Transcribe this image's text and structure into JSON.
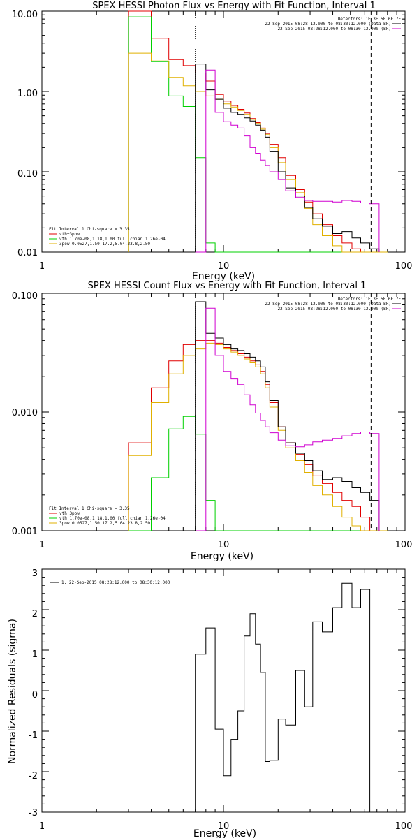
{
  "chart_data": [
    {
      "type": "line",
      "title": "SPEX HESSI Photon Flux vs Energy with Fit Function, Interval 1",
      "xlabel": "Energy (keV)",
      "ylabel": "",
      "xscale": "log",
      "yscale": "log",
      "xlim": [
        1,
        100
      ],
      "ylim": [
        0.01,
        10
      ],
      "x_ticks": [
        "1",
        "10",
        "100"
      ],
      "y_ticks": [
        "10.00",
        "1.00",
        "0.10",
        "0.01"
      ],
      "edges": [
        3,
        4,
        5,
        6,
        7,
        8,
        9,
        10,
        11,
        12,
        13,
        14,
        15,
        16,
        17,
        18,
        20,
        22,
        25,
        28,
        31,
        35,
        40,
        45,
        51,
        57,
        64,
        72,
        80
      ],
      "vlines": [
        {
          "x": 7,
          "style": "dotted"
        },
        {
          "x": 65,
          "style": "dashed"
        }
      ],
      "series": [
        {
          "name": "vth+3pow",
          "color": "#e00000",
          "values": [
            10,
            4.6,
            2.5,
            2.1,
            1.7,
            1.35,
            0.92,
            0.76,
            0.67,
            0.6,
            0.54,
            0.46,
            0.41,
            0.35,
            0.3,
            0.22,
            0.15,
            0.09,
            0.06,
            0.042,
            0.03,
            0.022,
            0.016,
            0.013,
            0.011,
            0.01,
            0.01,
            0.01
          ]
        },
        {
          "name": "vth 1.70e-08,1.18,1.00  full chian 1.26e-04",
          "color": "#00d000",
          "values": [
            8.5,
            2.35,
            0.88,
            0.65,
            0.15,
            0.013,
            0.01,
            0.01,
            0.01,
            0.01,
            0.01,
            0.01,
            0.01,
            0.01,
            0.01,
            0.01,
            0.01,
            0.01,
            0.01,
            0.01,
            0.01,
            0.01,
            0.01,
            0.01,
            0.01,
            0.01,
            0.01,
            0.01
          ]
        },
        {
          "name": "3pow 0.0527,1.50,17.2,5.04,23.8,2.50",
          "color": "#e0b000",
          "values": [
            3.0,
            2.4,
            1.5,
            1.18,
            1.0,
            0.88,
            0.8,
            0.7,
            0.64,
            0.58,
            0.52,
            0.45,
            0.4,
            0.34,
            0.29,
            0.2,
            0.13,
            0.08,
            0.055,
            0.035,
            0.022,
            0.016,
            0.012,
            0.01,
            0.01,
            0.01,
            0.01,
            0.01
          ]
        },
        {
          "name": "22-Sep-2015 08:28:12.000 to 08:30:12.000 (Data-Bk)",
          "color": "#000000",
          "values": [
            null,
            null,
            null,
            null,
            2.2,
            1.05,
            0.8,
            0.62,
            0.55,
            0.52,
            0.47,
            0.43,
            0.38,
            0.33,
            0.27,
            0.18,
            0.1,
            0.063,
            0.05,
            0.036,
            0.026,
            0.021,
            0.017,
            0.018,
            0.015,
            0.013,
            0.011,
            null
          ]
        },
        {
          "name": "22-Sep-2015 08:28:12.000 to 08:30:12.000 (Bk)",
          "color": "#d000d0",
          "values": [
            null,
            null,
            null,
            null,
            0.01,
            1.85,
            0.55,
            0.42,
            0.38,
            0.35,
            0.28,
            0.2,
            0.17,
            0.14,
            0.12,
            0.1,
            0.08,
            0.058,
            0.048,
            0.044,
            0.043,
            0.043,
            0.042,
            0.044,
            0.043,
            0.041,
            0.04,
            null
          ]
        }
      ],
      "legend_top": [
        "Detectors: 1F 3F 5F 6F 7F",
        "22-Sep-2015 08:28:12.000 to 08:30:12.000 (Data-Bk)",
        "22-Sep-2015 08:28:12.000 to 08:30:12.000 (Bk)"
      ],
      "legend_bottom": [
        "Fit Interval 1    Chi-square = 3.35",
        "vth+3pow",
        "vth 1.70e-08,1.18,1.00  full chian 1.26e-04",
        "3pow 0.0527,1.50,17.2,5.04,23.8,2.50"
      ]
    },
    {
      "type": "line",
      "title": "SPEX HESSI Count Flux vs Energy with Fit Function, Interval 1",
      "xlabel": "Energy (keV)",
      "ylabel": "",
      "xscale": "log",
      "yscale": "log",
      "xlim": [
        1,
        100
      ],
      "ylim": [
        0.001,
        0.1
      ],
      "x_ticks": [
        "1",
        "10",
        "100"
      ],
      "y_ticks": [
        "0.100",
        "0.010",
        "0.001"
      ],
      "edges": [
        3,
        4,
        5,
        6,
        7,
        8,
        9,
        10,
        11,
        12,
        13,
        14,
        15,
        16,
        17,
        18,
        20,
        22,
        25,
        28,
        31,
        35,
        40,
        45,
        51,
        57,
        64,
        72,
        80
      ],
      "vlines": [
        {
          "x": 7,
          "style": "dotted"
        },
        {
          "x": 65,
          "style": "dashed"
        }
      ],
      "series": [
        {
          "name": "vth+3pow",
          "color": "#e00000",
          "values": [
            0.0055,
            0.016,
            0.027,
            0.037,
            0.04,
            0.04,
            0.038,
            0.035,
            0.033,
            0.031,
            0.029,
            0.027,
            0.025,
            0.022,
            0.017,
            0.012,
            0.0075,
            0.0055,
            0.0044,
            0.0036,
            0.0029,
            0.0025,
            0.0021,
            0.0018,
            0.0016,
            0.0013,
            0.001,
            0.001
          ]
        },
        {
          "name": "vth 1.70e-08,1.18,1.00  full chian 1.26e-04",
          "color": "#00d000",
          "values": [
            0.001,
            0.0028,
            0.0072,
            0.0092,
            0.0065,
            0.0018,
            0.001,
            0.001,
            0.001,
            0.001,
            0.001,
            0.001,
            0.001,
            0.001,
            0.001,
            0.001,
            0.001,
            0.001,
            0.001,
            0.001,
            0.001,
            0.001,
            0.001,
            0.001,
            0.001,
            0.001,
            0.001,
            0.001
          ]
        },
        {
          "name": "3pow 0.0527,1.50,17.2,5.04,23.8,2.50",
          "color": "#e0b000",
          "values": [
            0.0043,
            0.012,
            0.021,
            0.03,
            0.034,
            0.038,
            0.037,
            0.034,
            0.032,
            0.03,
            0.028,
            0.026,
            0.024,
            0.021,
            0.016,
            0.011,
            0.007,
            0.005,
            0.0039,
            0.0031,
            0.0024,
            0.002,
            0.0016,
            0.0013,
            0.0011,
            0.001,
            0.001,
            0.001
          ]
        },
        {
          "name": "22-Sep-2015 08:28:12.000 to 08:30:12.000 (Data-Bk)",
          "color": "#000000",
          "values": [
            null,
            null,
            null,
            null,
            0.085,
            0.046,
            0.042,
            0.037,
            0.034,
            0.033,
            0.031,
            0.029,
            0.027,
            0.024,
            0.018,
            0.0125,
            0.0075,
            0.0055,
            0.0045,
            0.0039,
            0.0032,
            0.0027,
            0.0028,
            0.0026,
            0.0023,
            0.0021,
            0.0018,
            null
          ]
        },
        {
          "name": "22-Sep-2015 08:28:12.000 to 08:30:12.000 (Bk)",
          "color": "#d000d0",
          "values": [
            null,
            null,
            null,
            null,
            0.001,
            0.075,
            0.03,
            0.022,
            0.019,
            0.017,
            0.014,
            0.0115,
            0.0098,
            0.0085,
            0.0075,
            0.0067,
            0.0058,
            0.0052,
            0.0051,
            0.0053,
            0.0056,
            0.0058,
            0.006,
            0.0063,
            0.0066,
            0.0068,
            0.0066,
            null
          ]
        }
      ],
      "legend_top": [
        "Detectors: 1F 3F 5F 6F 7F",
        "22-Sep-2015 08:28:12.000 to 08:30:12.000 (Data-Bk)",
        "22-Sep-2015 08:28:12.000 to 08:30:12.000 (Bk)"
      ],
      "legend_bottom": [
        "Fit Interval 1    Chi-square = 3.35",
        "vth+3pow",
        "vth 1.70e-08,1.18,1.00  full chian 1.26e-04",
        "3pow 0.0527,1.50,17.2,5.04,23.8,2.50"
      ]
    },
    {
      "type": "line",
      "title": "",
      "xlabel": "Energy (keV)",
      "ylabel": "Normalized Residuals (sigma)",
      "xscale": "log",
      "yscale": "linear",
      "xlim": [
        1,
        100
      ],
      "ylim": [
        -3,
        3
      ],
      "x_ticks": [
        "1",
        "10",
        "100"
      ],
      "y_ticks": [
        "3",
        "2",
        "1",
        "0",
        "-1",
        "-2",
        "-3"
      ],
      "edges": [
        7,
        8,
        9,
        10,
        11,
        12,
        13,
        14,
        15,
        16,
        17,
        18,
        20,
        22,
        25,
        28,
        31,
        35,
        40,
        45,
        51,
        57,
        64
      ],
      "series": [
        {
          "name": "1. 22-Sep-2015 08:28:12.000 to 08:30:12.000",
          "color": "#000000",
          "values": [
            0.9,
            1.55,
            -0.95,
            -2.1,
            -1.2,
            -0.5,
            1.35,
            1.9,
            1.15,
            0.45,
            -1.75,
            -1.72,
            -0.7,
            -0.85,
            0.5,
            -0.4,
            1.7,
            1.45,
            2.05,
            2.65,
            2.05,
            2.5
          ]
        }
      ],
      "legend_top": [
        "1. 22-Sep-2015 08:28:12.000 to 08:30:12.000"
      ]
    }
  ]
}
